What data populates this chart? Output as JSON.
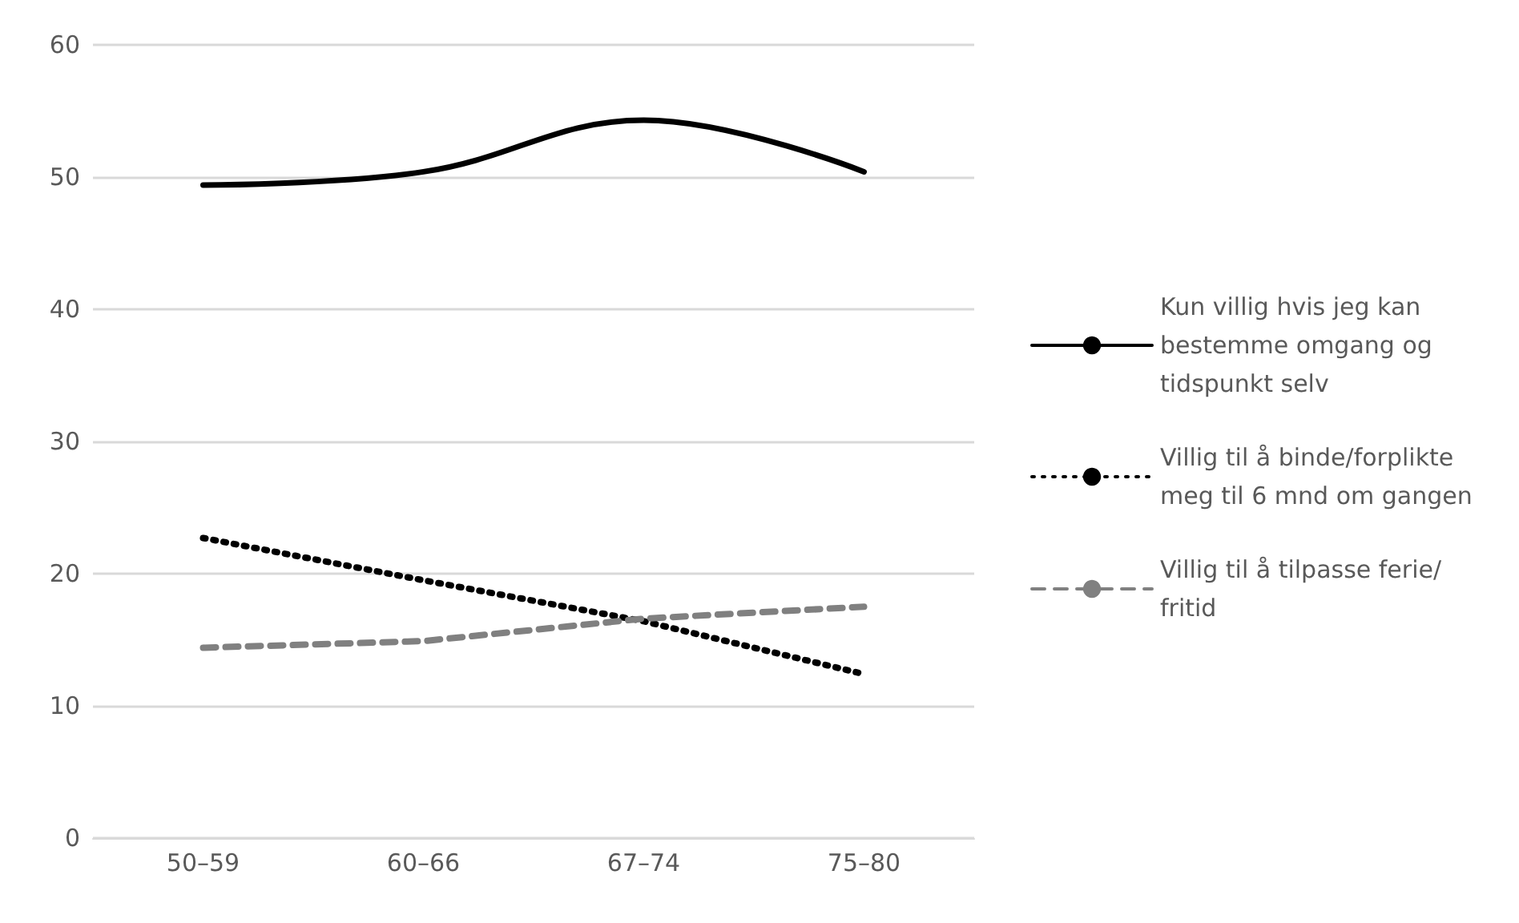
{
  "chart_data": {
    "type": "line",
    "categories": [
      "50–59",
      "60–66",
      "67–74",
      "75–80"
    ],
    "series": [
      {
        "name": "Kun villig hvis jeg kan bestemme omgang og tidspunkt selv",
        "color": "#000000",
        "line_style": "solid",
        "values": [
          49.4,
          50.4,
          54.3,
          50.4
        ]
      },
      {
        "name": "Villig til å binde/forplikte meg til 6 mnd om gangen",
        "color": "#000000",
        "line_style": "dotted",
        "values": [
          22.7,
          19.5,
          16.4,
          12.4
        ]
      },
      {
        "name": "Villig til å tilpasse ferie/fritid",
        "color": "#808080",
        "line_style": "dashed",
        "values": [
          14.4,
          14.9,
          16.6,
          17.5
        ]
      }
    ],
    "ylim": [
      0,
      60
    ],
    "yticks": [
      0,
      10,
      20,
      30,
      40,
      50,
      60
    ],
    "grid": "y",
    "legend": "right",
    "marker": "none"
  }
}
